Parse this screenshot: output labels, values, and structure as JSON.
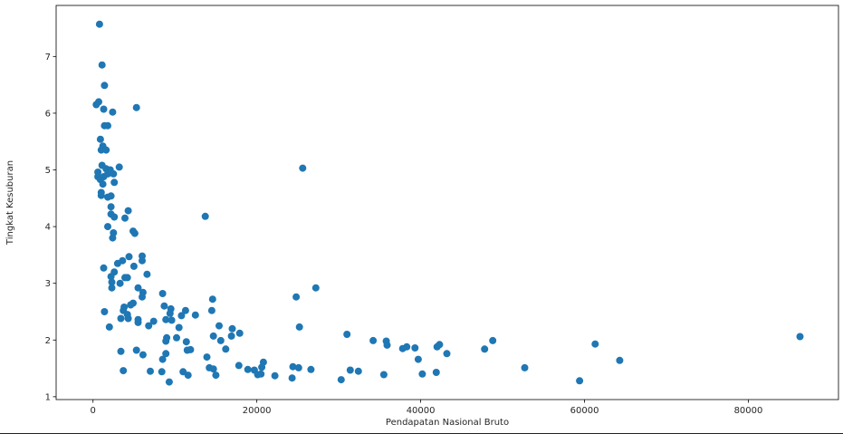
{
  "chart_data": {
    "type": "scatter",
    "title": "",
    "xlabel": "Pendapatan Nasional Bruto",
    "ylabel": "Tingkat Kesuburan",
    "xlim": [
      -4500,
      91000
    ],
    "ylim": [
      0.95,
      7.9
    ],
    "xticks": [
      0,
      20000,
      40000,
      60000,
      80000
    ],
    "yticks": [
      1,
      2,
      3,
      4,
      5,
      6,
      7
    ],
    "grid": false,
    "legend": "none",
    "color": "#1f77b4",
    "points": [
      [
        800,
        7.57
      ],
      [
        1100,
        6.85
      ],
      [
        1400,
        6.49
      ],
      [
        5300,
        6.1
      ],
      [
        400,
        6.15
      ],
      [
        700,
        6.2
      ],
      [
        1300,
        6.07
      ],
      [
        2400,
        6.02
      ],
      [
        1400,
        5.78
      ],
      [
        1800,
        5.78
      ],
      [
        900,
        5.54
      ],
      [
        1200,
        5.42
      ],
      [
        1000,
        5.35
      ],
      [
        1600,
        5.35
      ],
      [
        1100,
        5.08
      ],
      [
        1600,
        5.02
      ],
      [
        2100,
        5.0
      ],
      [
        3200,
        5.05
      ],
      [
        25600,
        5.03
      ],
      [
        600,
        4.96
      ],
      [
        600,
        4.88
      ],
      [
        900,
        4.83
      ],
      [
        1300,
        4.88
      ],
      [
        1800,
        4.93
      ],
      [
        2500,
        4.93
      ],
      [
        1200,
        4.75
      ],
      [
        2600,
        4.78
      ],
      [
        1000,
        4.55
      ],
      [
        1000,
        4.6
      ],
      [
        1800,
        4.52
      ],
      [
        2200,
        4.54
      ],
      [
        2200,
        4.35
      ],
      [
        4300,
        4.28
      ],
      [
        2200,
        4.22
      ],
      [
        2600,
        4.17
      ],
      [
        3900,
        4.15
      ],
      [
        13700,
        4.18
      ],
      [
        1800,
        4.0
      ],
      [
        4900,
        3.92
      ],
      [
        5100,
        3.88
      ],
      [
        2500,
        3.89
      ],
      [
        2400,
        3.8
      ],
      [
        4400,
        3.47
      ],
      [
        6000,
        3.48
      ],
      [
        6000,
        3.4
      ],
      [
        3600,
        3.4
      ],
      [
        3000,
        3.35
      ],
      [
        5000,
        3.3
      ],
      [
        1300,
        3.27
      ],
      [
        2600,
        3.2
      ],
      [
        6600,
        3.16
      ],
      [
        2200,
        3.12
      ],
      [
        3900,
        3.1
      ],
      [
        4200,
        3.1
      ],
      [
        2300,
        3.02
      ],
      [
        3300,
        3.0
      ],
      [
        2300,
        2.92
      ],
      [
        5500,
        2.92
      ],
      [
        27200,
        2.92
      ],
      [
        6100,
        2.84
      ],
      [
        8500,
        2.82
      ],
      [
        6000,
        2.76
      ],
      [
        14600,
        2.72
      ],
      [
        24800,
        2.76
      ],
      [
        4900,
        2.65
      ],
      [
        4600,
        2.62
      ],
      [
        8700,
        2.6
      ],
      [
        3800,
        2.58
      ],
      [
        3700,
        2.52
      ],
      [
        9500,
        2.55
      ],
      [
        11300,
        2.52
      ],
      [
        14500,
        2.52
      ],
      [
        1400,
        2.5
      ],
      [
        4200,
        2.45
      ],
      [
        9400,
        2.47
      ],
      [
        10800,
        2.43
      ],
      [
        12500,
        2.44
      ],
      [
        3400,
        2.38
      ],
      [
        4300,
        2.38
      ],
      [
        5500,
        2.36
      ],
      [
        7400,
        2.33
      ],
      [
        8900,
        2.36
      ],
      [
        9600,
        2.35
      ],
      [
        5500,
        2.31
      ],
      [
        6800,
        2.25
      ],
      [
        2000,
        2.23
      ],
      [
        10500,
        2.22
      ],
      [
        15400,
        2.25
      ],
      [
        25200,
        2.23
      ],
      [
        17000,
        2.2
      ],
      [
        17900,
        2.12
      ],
      [
        31000,
        2.1
      ],
      [
        14700,
        2.07
      ],
      [
        16900,
        2.07
      ],
      [
        9000,
        2.04
      ],
      [
        10200,
        2.04
      ],
      [
        8900,
        1.98
      ],
      [
        11400,
        1.97
      ],
      [
        15600,
        1.99
      ],
      [
        34200,
        1.99
      ],
      [
        35800,
        1.98
      ],
      [
        48800,
        1.99
      ],
      [
        86300,
        2.06
      ],
      [
        35900,
        1.91
      ],
      [
        38300,
        1.88
      ],
      [
        39300,
        1.86
      ],
      [
        42300,
        1.92
      ],
      [
        61300,
        1.93
      ],
      [
        11500,
        1.82
      ],
      [
        11900,
        1.83
      ],
      [
        16200,
        1.84
      ],
      [
        37800,
        1.85
      ],
      [
        42000,
        1.88
      ],
      [
        47800,
        1.84
      ],
      [
        3400,
        1.8
      ],
      [
        5300,
        1.82
      ],
      [
        6100,
        1.74
      ],
      [
        8900,
        1.76
      ],
      [
        13900,
        1.7
      ],
      [
        43200,
        1.76
      ],
      [
        8500,
        1.66
      ],
      [
        39700,
        1.66
      ],
      [
        64300,
        1.64
      ],
      [
        20800,
        1.61
      ],
      [
        17800,
        1.55
      ],
      [
        24400,
        1.53
      ],
      [
        20600,
        1.52
      ],
      [
        25100,
        1.51
      ],
      [
        52700,
        1.51
      ],
      [
        14200,
        1.51
      ],
      [
        14700,
        1.49
      ],
      [
        18900,
        1.48
      ],
      [
        19700,
        1.47
      ],
      [
        26600,
        1.48
      ],
      [
        31400,
        1.47
      ],
      [
        32400,
        1.45
      ],
      [
        3700,
        1.46
      ],
      [
        7000,
        1.45
      ],
      [
        8400,
        1.44
      ],
      [
        11000,
        1.44
      ],
      [
        20100,
        1.39
      ],
      [
        20500,
        1.4
      ],
      [
        35500,
        1.39
      ],
      [
        40200,
        1.4
      ],
      [
        41900,
        1.43
      ],
      [
        11600,
        1.38
      ],
      [
        15000,
        1.38
      ],
      [
        22200,
        1.37
      ],
      [
        24300,
        1.33
      ],
      [
        30300,
        1.3
      ],
      [
        59400,
        1.28
      ],
      [
        9300,
        1.26
      ]
    ]
  }
}
